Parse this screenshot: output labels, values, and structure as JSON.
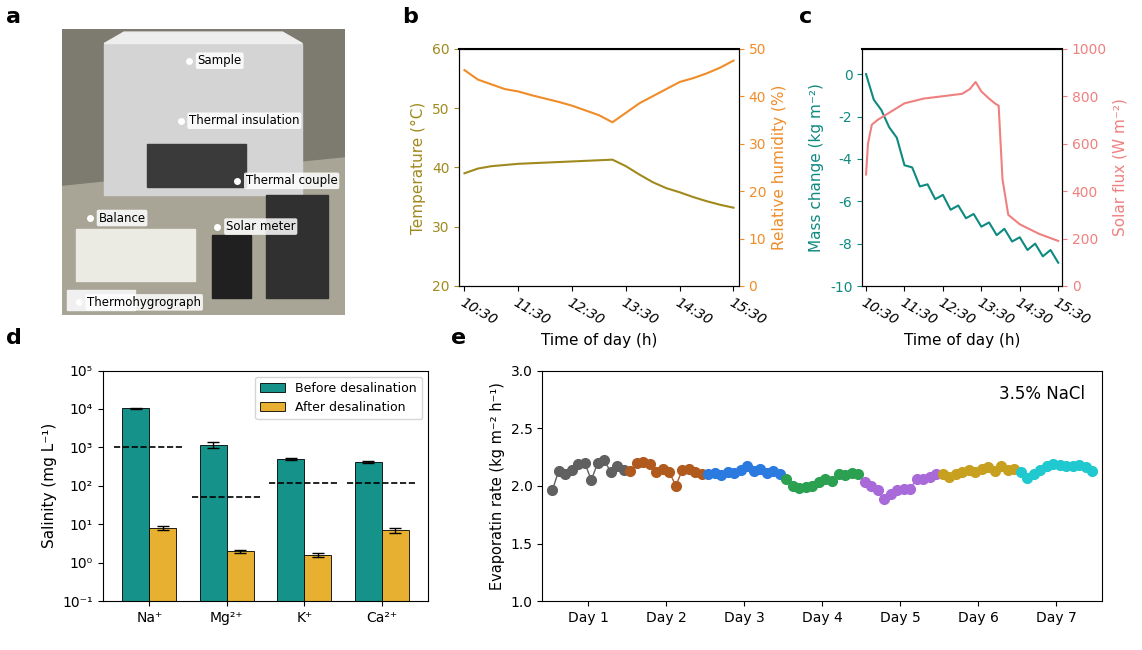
{
  "photo": {
    "title": "a",
    "labels": [
      "Sample",
      "Thermal insulation",
      "Balance",
      "Thermal couple",
      "Thermohygrograph",
      "Solar meter"
    ]
  },
  "chart_data": [
    {
      "type": "line",
      "title": "b",
      "x_label": "Time of day (h)",
      "y_label": "Temperature (°C)",
      "y2_label": "Relative humidity (%)",
      "xlim": [
        10.4,
        15.6
      ],
      "xticks": [
        {
          "value": 10.5,
          "label": "10:30"
        },
        {
          "value": 11.5,
          "label": "11:30"
        },
        {
          "value": 12.5,
          "label": "12:30"
        },
        {
          "value": 13.5,
          "label": "13:30"
        },
        {
          "value": 14.5,
          "label": "14:30"
        },
        {
          "value": 15.5,
          "label": "15:30"
        }
      ],
      "ylim": [
        20,
        60
      ],
      "yticks": [
        20,
        30,
        40,
        50,
        60
      ],
      "y2lim": [
        0,
        50
      ],
      "y2ticks": [
        0,
        10,
        20,
        30,
        40,
        50
      ],
      "series": [
        {
          "color": "#a08a1e",
          "x": [
            10.5,
            10.75,
            11.0,
            11.25,
            11.5,
            11.75,
            12.0,
            12.25,
            12.5,
            12.75,
            13.0,
            13.25,
            13.5,
            13.75,
            14.0,
            14.25,
            14.5,
            14.75,
            15.0,
            15.25,
            15.5
          ],
          "values": [
            39.0,
            39.8,
            40.2,
            40.4,
            40.6,
            40.7,
            40.8,
            40.9,
            41.0,
            41.1,
            41.2,
            41.3,
            40.2,
            38.8,
            37.5,
            36.5,
            35.8,
            35.0,
            34.3,
            33.7,
            33.2
          ]
        },
        {
          "color": "#f08c28",
          "axis": "y2",
          "x": [
            10.5,
            10.75,
            11.0,
            11.25,
            11.5,
            11.75,
            12.0,
            12.25,
            12.5,
            12.75,
            13.0,
            13.25,
            13.5,
            13.75,
            14.0,
            14.25,
            14.5,
            14.75,
            15.0,
            15.25,
            15.5
          ],
          "values": [
            45.5,
            43.5,
            42.5,
            41.5,
            41.0,
            40.2,
            39.5,
            38.8,
            38.0,
            37.0,
            36.0,
            34.5,
            36.5,
            38.5,
            40.0,
            41.5,
            43.0,
            43.8,
            44.8,
            46.0,
            47.5
          ]
        }
      ]
    },
    {
      "type": "line",
      "title": "c",
      "x_label": "Time of day (h)",
      "y_label": "Mass change (kg m⁻²)",
      "y2_label": "Solar flux (W m⁻²)",
      "xlim": [
        10.4,
        15.6
      ],
      "xticks": [
        {
          "value": 10.5,
          "label": "10:30"
        },
        {
          "value": 11.5,
          "label": "11:30"
        },
        {
          "value": 12.5,
          "label": "12:30"
        },
        {
          "value": 13.5,
          "label": "13:30"
        },
        {
          "value": 14.5,
          "label": "14:30"
        },
        {
          "value": 15.5,
          "label": "15:30"
        }
      ],
      "ylim": [
        -10,
        1.2
      ],
      "yticks": [
        0,
        -2,
        -4,
        -6,
        -8,
        -10
      ],
      "y2lim": [
        0,
        1000
      ],
      "y2ticks": [
        0,
        200,
        400,
        600,
        800,
        1000
      ],
      "series": [
        {
          "color": "#0e8a80",
          "x": [
            10.5,
            10.7,
            10.9,
            11.1,
            11.3,
            11.5,
            11.7,
            11.9,
            12.1,
            12.3,
            12.5,
            12.7,
            12.9,
            13.1,
            13.3,
            13.5,
            13.7,
            13.9,
            14.1,
            14.3,
            14.5,
            14.7,
            14.9,
            15.1,
            15.3,
            15.5
          ],
          "values": [
            0.0,
            -1.2,
            -1.7,
            -2.5,
            -3.0,
            -4.3,
            -4.4,
            -5.3,
            -5.2,
            -5.9,
            -5.7,
            -6.4,
            -6.2,
            -6.8,
            -6.6,
            -7.2,
            -7.0,
            -7.6,
            -7.3,
            -7.9,
            -7.7,
            -8.3,
            -8.0,
            -8.6,
            -8.3,
            -8.9
          ]
        },
        {
          "color": "#f08080",
          "axis": "y2",
          "x": [
            10.5,
            10.55,
            10.65,
            10.8,
            11.0,
            11.5,
            12.0,
            12.5,
            13.0,
            13.2,
            13.35,
            13.5,
            13.7,
            13.85,
            13.95,
            14.05,
            14.2,
            14.5,
            15.0,
            15.5
          ],
          "values": [
            470,
            600,
            680,
            700,
            720,
            770,
            790,
            800,
            810,
            830,
            860,
            820,
            790,
            770,
            760,
            450,
            300,
            260,
            220,
            190
          ]
        }
      ]
    },
    {
      "type": "bar",
      "title": "d",
      "y_label": "Salinity (mg L⁻¹)",
      "categories": [
        "Na⁺",
        "Mg²⁺",
        "K⁺",
        "Ca²⁺"
      ],
      "log": "y",
      "ylim": [
        0.1,
        100000
      ],
      "yticks": [
        {
          "value": 0.1,
          "label": "10⁻¹"
        },
        {
          "value": 1,
          "label": "10⁰"
        },
        {
          "value": 10,
          "label": "10¹"
        },
        {
          "value": 100,
          "label": "10²"
        },
        {
          "value": 1000,
          "label": "10³"
        },
        {
          "value": 10000,
          "label": "10⁴"
        },
        {
          "value": 100000,
          "label": "10⁵"
        }
      ],
      "legend": "upper right",
      "limits": [
        1000,
        50,
        120,
        120
      ],
      "series": [
        {
          "name": "Before desalination",
          "color": "#15938a",
          "values": [
            10500,
            1150,
            500,
            420
          ],
          "errors": [
            400,
            200,
            20,
            20
          ]
        },
        {
          "name": "After desalination",
          "color": "#e8b030",
          "values": [
            8.0,
            2.0,
            1.6,
            7.0
          ],
          "errors": [
            1.0,
            0.15,
            0.2,
            1.2
          ]
        }
      ]
    },
    {
      "type": "line",
      "title": "e",
      "y_label": "Evaporatin rate (kg m⁻² h⁻¹)",
      "annotation": "3.5% NaCl",
      "marker": "o",
      "ylim": [
        1.0,
        3.0
      ],
      "yticks": [
        {
          "value": 1.0,
          "label": "1.0"
        },
        1.5,
        {
          "value": 2.0,
          "label": "2.0"
        },
        2.5,
        {
          "value": 3.0,
          "label": "3.0"
        }
      ],
      "series": [
        {
          "name": "Day 1",
          "color": "#606060",
          "values": [
            1.96,
            2.13,
            2.1,
            2.14,
            2.19,
            2.2,
            2.05,
            2.2,
            2.22,
            2.12,
            2.17,
            2.14
          ]
        },
        {
          "name": "Day 2",
          "color": "#b05a1e",
          "values": [
            2.13,
            2.2,
            2.21,
            2.19,
            2.12,
            2.15,
            2.12,
            2.0,
            2.14,
            2.15,
            2.12,
            2.1
          ]
        },
        {
          "name": "Day 3",
          "color": "#2a7ae0",
          "values": [
            2.1,
            2.11,
            2.09,
            2.12,
            2.11,
            2.14,
            2.17,
            2.13,
            2.15,
            2.11,
            2.13,
            2.1
          ]
        },
        {
          "name": "Day 4",
          "color": "#2aa050",
          "values": [
            2.06,
            2.0,
            1.98,
            1.99,
            2.0,
            2.03,
            2.06,
            2.04,
            2.1,
            2.09,
            2.11,
            2.1
          ]
        },
        {
          "name": "Day 5",
          "color": "#a86ad8",
          "values": [
            2.03,
            2.0,
            1.96,
            1.89,
            1.93,
            1.96,
            1.97,
            1.97,
            2.06,
            2.06,
            2.08,
            2.1
          ]
        },
        {
          "name": "Day 6",
          "color": "#c8a020",
          "values": [
            2.1,
            2.08,
            2.1,
            2.12,
            2.14,
            2.12,
            2.15,
            2.16,
            2.13,
            2.17,
            2.14,
            2.15
          ]
        },
        {
          "name": "Day 7",
          "color": "#20c8d0",
          "values": [
            2.12,
            2.07,
            2.1,
            2.14,
            2.17,
            2.19,
            2.18,
            2.17,
            2.17,
            2.18,
            2.16,
            2.13
          ]
        }
      ]
    }
  ]
}
